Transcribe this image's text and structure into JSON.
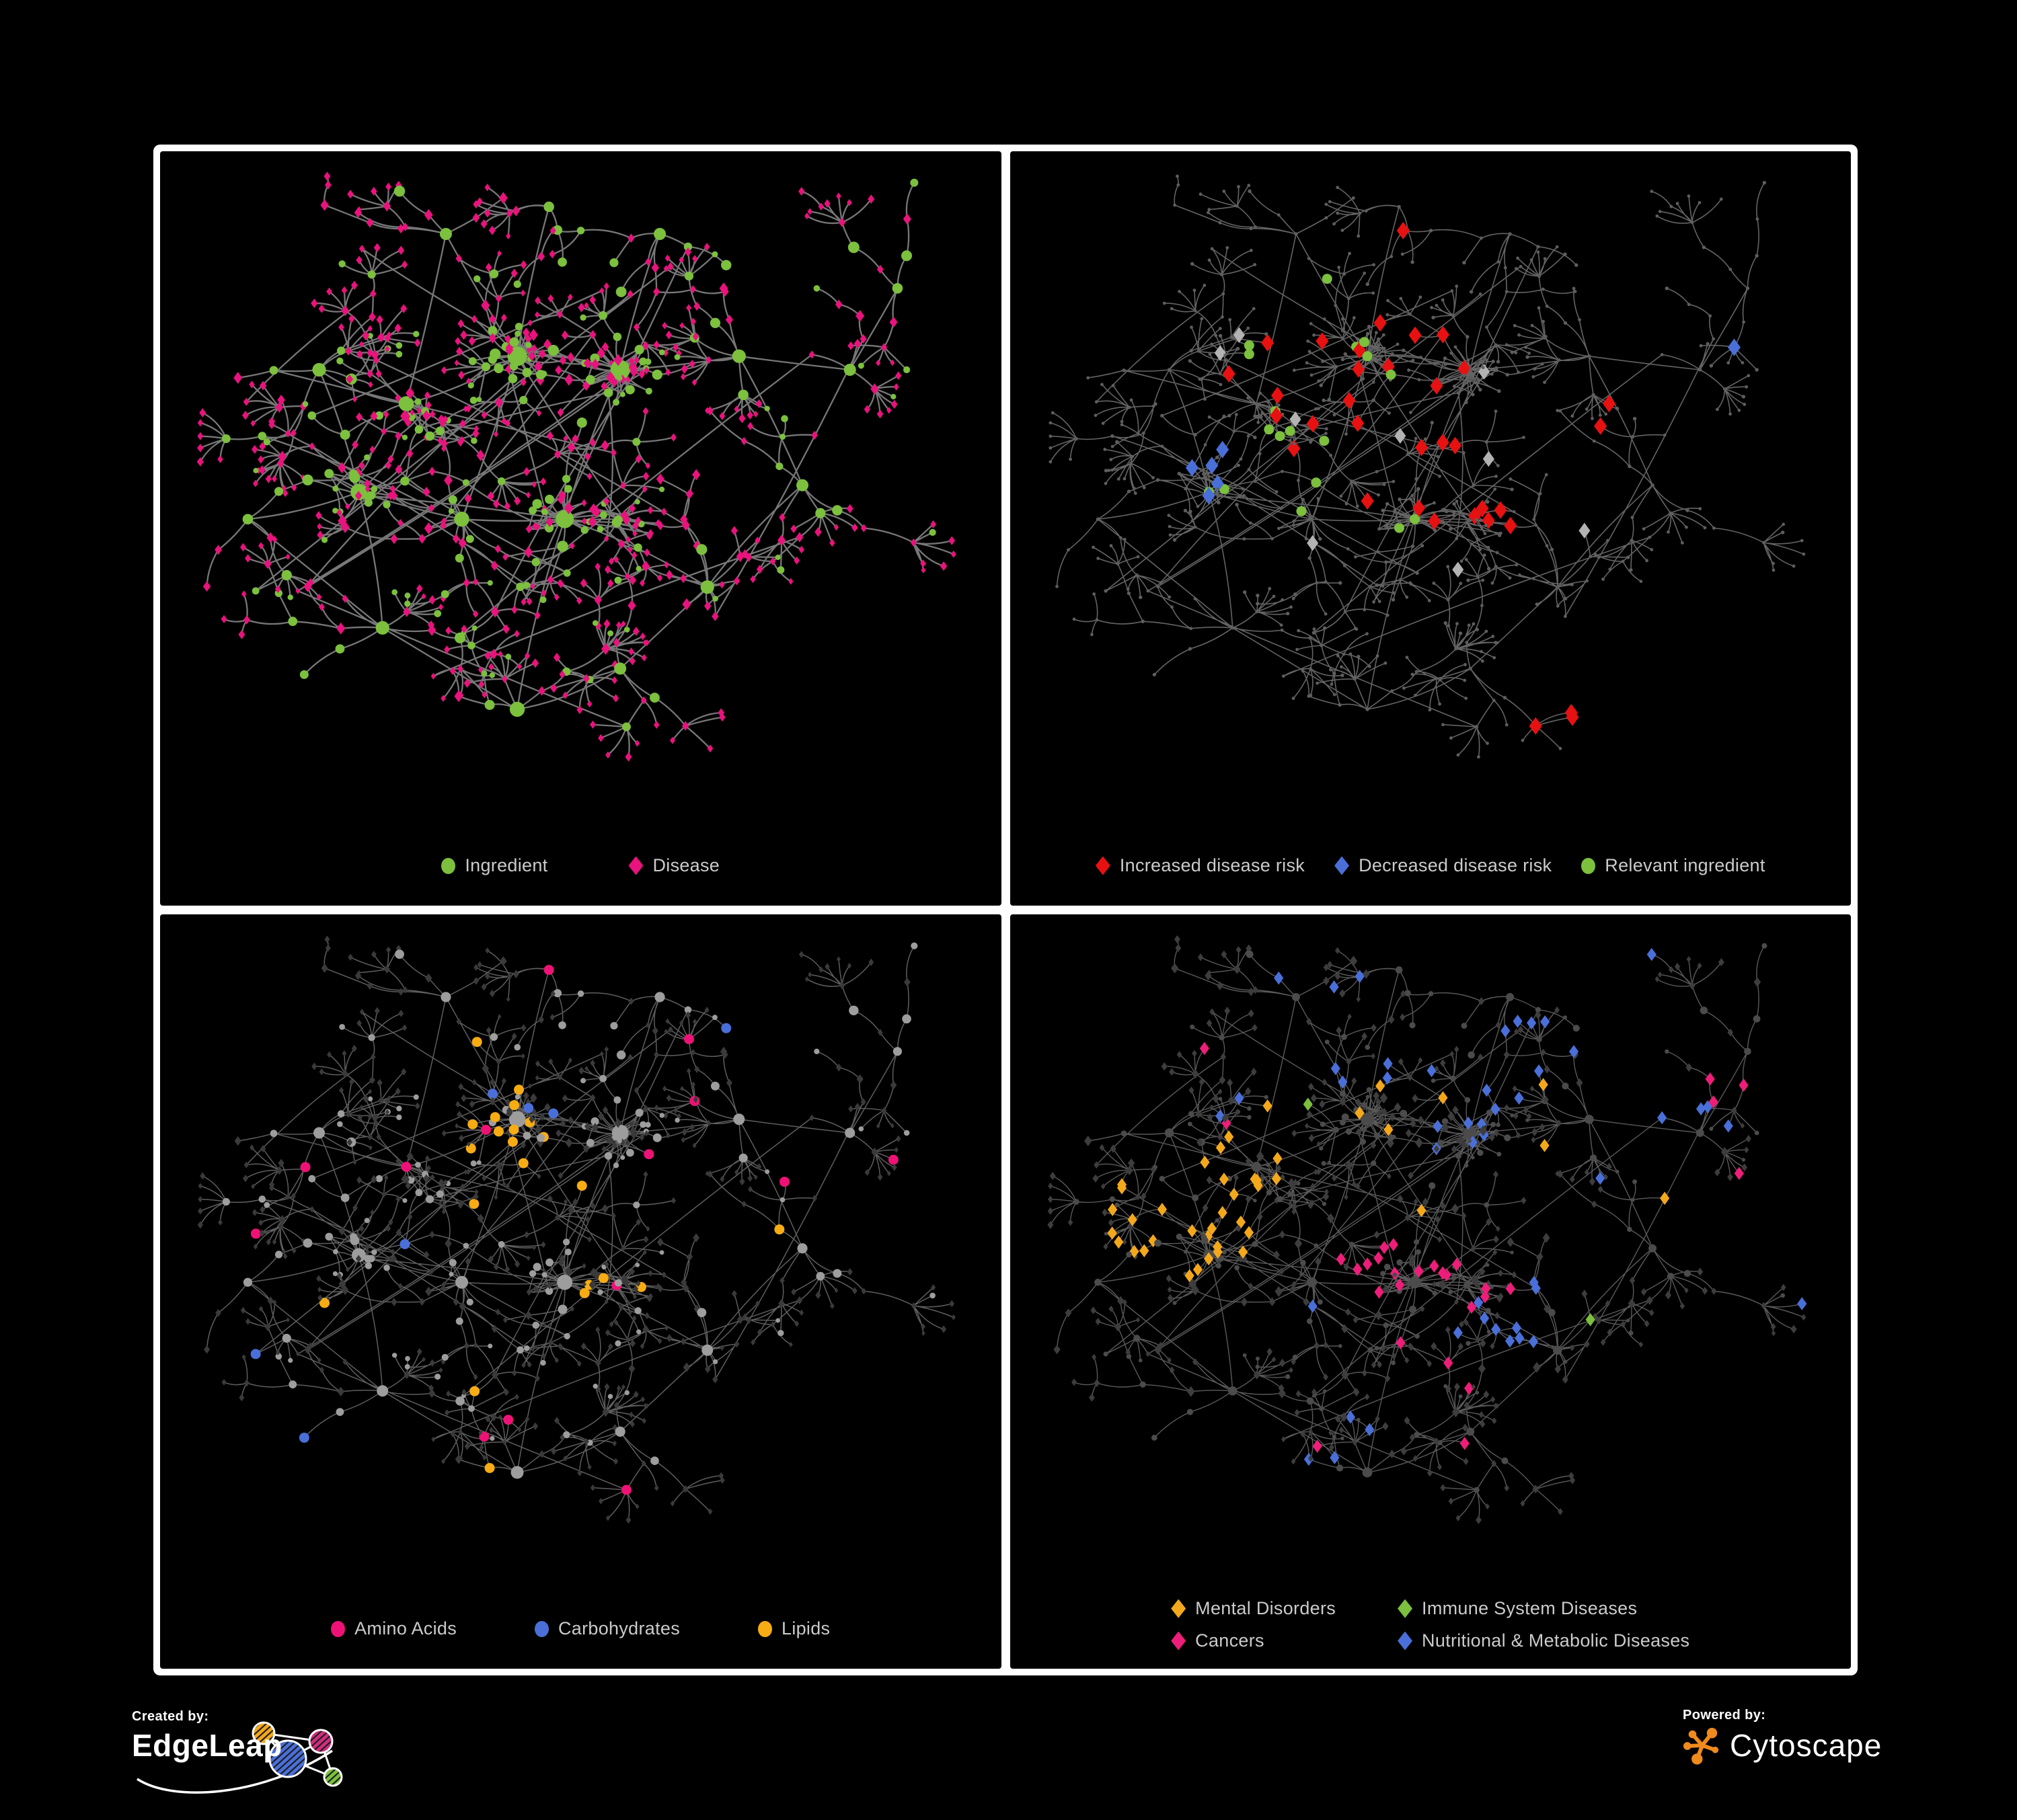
{
  "figure": {
    "background": "#000000",
    "panel_border_color": "#ffffff"
  },
  "panels": [
    {
      "key": "ingredient-disease",
      "legend_gap": 120,
      "legend_rows": [
        [
          {
            "label": "Ingredient",
            "color": "#7cc03e",
            "shape": "circle"
          },
          {
            "label": "Disease",
            "color": "#e8137d",
            "shape": "diamond"
          }
        ]
      ],
      "style": {
        "mode": "by-type",
        "size_mult": 1.12,
        "edge": {
          "color": "#7d7d7d",
          "width": 2.3,
          "opacity": 0.95
        },
        "ingredient": {
          "shape": "circle",
          "color": "#7cc03e"
        },
        "disease": {
          "shape": "diamond",
          "color": "#e8137d"
        }
      }
    },
    {
      "key": "disease-risk",
      "legend_gap": 44,
      "legend_rows": [
        [
          {
            "label": "Increased disease risk",
            "color": "#e81111",
            "shape": "diamond"
          },
          {
            "label": "Decreased disease risk",
            "color": "#4a6fd8",
            "shape": "diamond"
          },
          {
            "label": "Relevant ingredient",
            "color": "#7cc03e",
            "shape": "circle"
          }
        ]
      ],
      "style": {
        "mode": "overlay",
        "edge": {
          "color": "#6f6f6f",
          "width": 1.6,
          "opacity": 0.9
        },
        "base": {
          "ingredient": {
            "shape": "circle",
            "color": "#5e5e5e",
            "size": 2.7
          },
          "disease": {
            "shape": "circle",
            "color": "#5e5e5e",
            "size": 2.4
          }
        },
        "overlays": [
          {
            "name": "increased-risk",
            "target": "disease",
            "shape": "diamond",
            "color": "#e81111",
            "size": 10,
            "regions": [
              [
                0.42,
                0.38,
                0.17,
                0.33
              ],
              [
                0.56,
                0.47,
                0.1,
                0.3
              ],
              [
                0.3,
                0.3,
                0.06,
                0.35
              ],
              [
                0.73,
                0.37,
                0.04,
                0.7
              ],
              [
                0.465,
                0.095,
                0.03,
                0.8
              ],
              [
                0.68,
                0.82,
                0.07,
                0.5
              ]
            ]
          },
          {
            "name": "decreased-risk",
            "target": "disease",
            "shape": "diamond",
            "color": "#4a6fd8",
            "size": 10,
            "regions": [
              [
                0.23,
                0.44,
                0.055,
                0.8
              ],
              [
                0.88,
                0.28,
                0.035,
                0.9
              ]
            ]
          },
          {
            "name": "neutral",
            "target": "disease",
            "shape": "diamond",
            "color": "#b3b3b3",
            "size": 9,
            "regions": [
              [
                0.42,
                0.42,
                0.25,
                0.06
              ],
              [
                0.67,
                0.56,
                0.06,
                0.5
              ]
            ]
          },
          {
            "name": "relevant-ingredient",
            "target": "ingredient",
            "shape": "circle",
            "color": "#7cc03e",
            "size": 7.5,
            "regions": [
              [
                0.35,
                0.38,
                0.22,
                0.4
              ],
              [
                0.62,
                0.62,
                0.06,
                0.6
              ],
              [
                0.75,
                0.92,
                0.05,
                0.6
              ],
              [
                0.05,
                0.35,
                0.05,
                0.4
              ]
            ]
          }
        ]
      }
    },
    {
      "key": "ingredient-classes",
      "legend_gap": 116,
      "legend_rows": [
        [
          {
            "label": "Amino Acids",
            "color": "#ee1276",
            "shape": "circle"
          },
          {
            "label": "Carbohydrates",
            "color": "#4a6fd8",
            "shape": "circle"
          },
          {
            "label": "Lipids",
            "color": "#f7ac14",
            "shape": "circle"
          }
        ]
      ],
      "style": {
        "mode": "overlay",
        "edge": {
          "color": "#767676",
          "width": 1.5,
          "opacity": 0.8
        },
        "base": {
          "ingredient": {
            "shape": "circle",
            "color": "#9d9d9d",
            "size_mult": 0.95
          },
          "disease": {
            "shape": "diamond",
            "color": "#3a3a3a",
            "size_mult": 0.9
          }
        },
        "overlays": [
          {
            "name": "lipids",
            "target": "ingredient",
            "shape": "circle",
            "color": "#f7ac14",
            "size": 7.5,
            "regions": [
              [
                0.42,
                0.28,
                0.085,
                0.75
              ],
              [
                0.37,
                0.43,
                0.07,
                0.45
              ],
              [
                0.52,
                0.55,
                0.05,
                0.65
              ],
              [
                0.33,
                0.62,
                0.04,
                0.4
              ],
              [
                0.5,
                0.5,
                2,
                0.035
              ]
            ]
          },
          {
            "name": "carbohydrates",
            "target": "ingredient",
            "shape": "circle",
            "color": "#4a6fd8",
            "size": 7.5,
            "regions": [
              [
                0.42,
                0.28,
                0.07,
                0.45
              ],
              [
                0.5,
                0.5,
                2,
                0.018
              ]
            ]
          },
          {
            "name": "amino-acids",
            "target": "ingredient",
            "shape": "circle",
            "color": "#ee1276",
            "size": 7.5,
            "regions": [
              [
                0.5,
                0.5,
                2,
                0.05
              ]
            ]
          }
        ]
      }
    },
    {
      "key": "disease-classes",
      "legend_gap": 92,
      "legend_rows": [
        [
          {
            "label": "Mental Disorders",
            "color": "#f3a81c",
            "shape": "diamond"
          },
          {
            "label": "Immune System Diseases",
            "color": "#7cc03e",
            "shape": "diamond"
          }
        ],
        [
          {
            "label": "Cancers",
            "color": "#ed1e79",
            "shape": "diamond"
          },
          {
            "label": "Nutritional & Metabolic Diseases",
            "color": "#4a6fd8",
            "shape": "diamond"
          }
        ]
      ],
      "style": {
        "mode": "overlay",
        "edge": {
          "color": "#6a6a6a",
          "width": 1.4,
          "opacity": 0.85
        },
        "base": {
          "disease": {
            "shape": "diamond",
            "color": "#3d3d3d",
            "size_mult": 1.0
          },
          "ingredient": {
            "shape": "circle",
            "color": "#4b4b4b",
            "size_mult": 0.75
          }
        },
        "overlays": [
          {
            "name": "mental-disorders",
            "target": "disease",
            "shape": "diamond",
            "color": "#f3a81c",
            "size": 7.5,
            "regions": [
              [
                0.2,
                0.42,
                0.13,
                0.85
              ],
              [
                0.3,
                0.3,
                0.06,
                0.3
              ],
              [
                0.5,
                0.5,
                2,
                0.02
              ]
            ]
          },
          {
            "name": "cancers",
            "target": "disease",
            "shape": "diamond",
            "color": "#ed1e79",
            "size": 7.5,
            "regions": [
              [
                0.47,
                0.52,
                0.11,
                0.6
              ],
              [
                0.88,
                0.25,
                0.06,
                0.6
              ],
              [
                0.5,
                0.5,
                2,
                0.02
              ]
            ]
          },
          {
            "name": "nutritional-metabolic",
            "target": "disease",
            "shape": "diamond",
            "color": "#4a6fd8",
            "size": 7.5,
            "regions": [
              [
                0.62,
                0.58,
                0.08,
                0.75
              ],
              [
                0.8,
                0.3,
                0.12,
                0.45
              ],
              [
                0.55,
                0.1,
                0.3,
                0.22
              ],
              [
                0.4,
                0.78,
                0.08,
                0.25
              ],
              [
                0.5,
                0.5,
                2,
                0.03
              ]
            ]
          },
          {
            "name": "immune-system",
            "target": "disease",
            "shape": "diamond",
            "color": "#7cc03e",
            "size": 7.5,
            "regions": [
              [
                0.5,
                0.5,
                2,
                0.015
              ]
            ]
          }
        ]
      }
    }
  ],
  "network_spec": {
    "seed": 1337,
    "extra_links": 26,
    "clusters": [
      [
        0.33,
        0.1,
        4,
        0,
        8,
        0
      ],
      [
        0.46,
        0.06,
        3,
        0,
        7,
        0
      ],
      [
        0.6,
        0.1,
        4,
        0,
        8,
        0
      ],
      [
        0.17,
        0.3,
        5,
        0,
        9,
        0
      ],
      [
        0.28,
        0.35,
        5,
        8,
        10,
        0
      ],
      [
        0.42,
        0.28,
        6,
        22,
        13,
        0
      ],
      [
        0.55,
        0.3,
        7,
        24,
        13,
        0
      ],
      [
        0.48,
        0.52,
        6,
        18,
        12,
        0
      ],
      [
        0.35,
        0.52,
        5,
        8,
        10,
        0
      ],
      [
        0.22,
        0.48,
        6,
        10,
        11,
        0
      ],
      [
        0.7,
        0.28,
        5,
        0,
        9,
        0
      ],
      [
        0.84,
        0.3,
        4,
        0,
        8,
        0
      ],
      [
        0.78,
        0.47,
        4,
        0,
        8,
        0
      ],
      [
        0.66,
        0.62,
        4,
        6,
        9,
        0
      ],
      [
        0.42,
        0.8,
        3,
        0,
        10,
        1
      ],
      [
        0.25,
        0.68,
        5,
        0,
        9,
        0
      ],
      [
        0.08,
        0.52,
        3,
        0,
        7,
        0
      ],
      [
        0.55,
        0.74,
        4,
        0,
        8,
        0
      ],
      [
        0.9,
        0.18,
        3,
        0,
        7,
        0
      ]
    ],
    "links": [
      [
        0,
        4
      ],
      [
        1,
        5
      ],
      [
        2,
        6
      ],
      [
        3,
        4
      ],
      [
        4,
        5
      ],
      [
        5,
        6
      ],
      [
        5,
        8
      ],
      [
        6,
        7
      ],
      [
        7,
        8
      ],
      [
        8,
        9
      ],
      [
        9,
        16
      ],
      [
        6,
        10
      ],
      [
        10,
        11
      ],
      [
        11,
        18
      ],
      [
        10,
        12
      ],
      [
        12,
        13
      ],
      [
        7,
        13
      ],
      [
        13,
        17
      ],
      [
        7,
        14
      ],
      [
        14,
        15
      ],
      [
        15,
        9
      ],
      [
        17,
        14
      ],
      [
        3,
        9
      ],
      [
        16,
        15
      ]
    ]
  },
  "branding": {
    "created_by": "Created by:",
    "brand_name": "EdgeLeap",
    "powered_by": "Powered by:",
    "engine_name": "Cytoscape",
    "cytoscape_orange": "#ef8a1c",
    "edgeleap_palette": {
      "orange": "#f3a81c",
      "magenta": "#cf2e7e",
      "blue": "#4a6fd8",
      "green": "#7cc03e"
    }
  }
}
